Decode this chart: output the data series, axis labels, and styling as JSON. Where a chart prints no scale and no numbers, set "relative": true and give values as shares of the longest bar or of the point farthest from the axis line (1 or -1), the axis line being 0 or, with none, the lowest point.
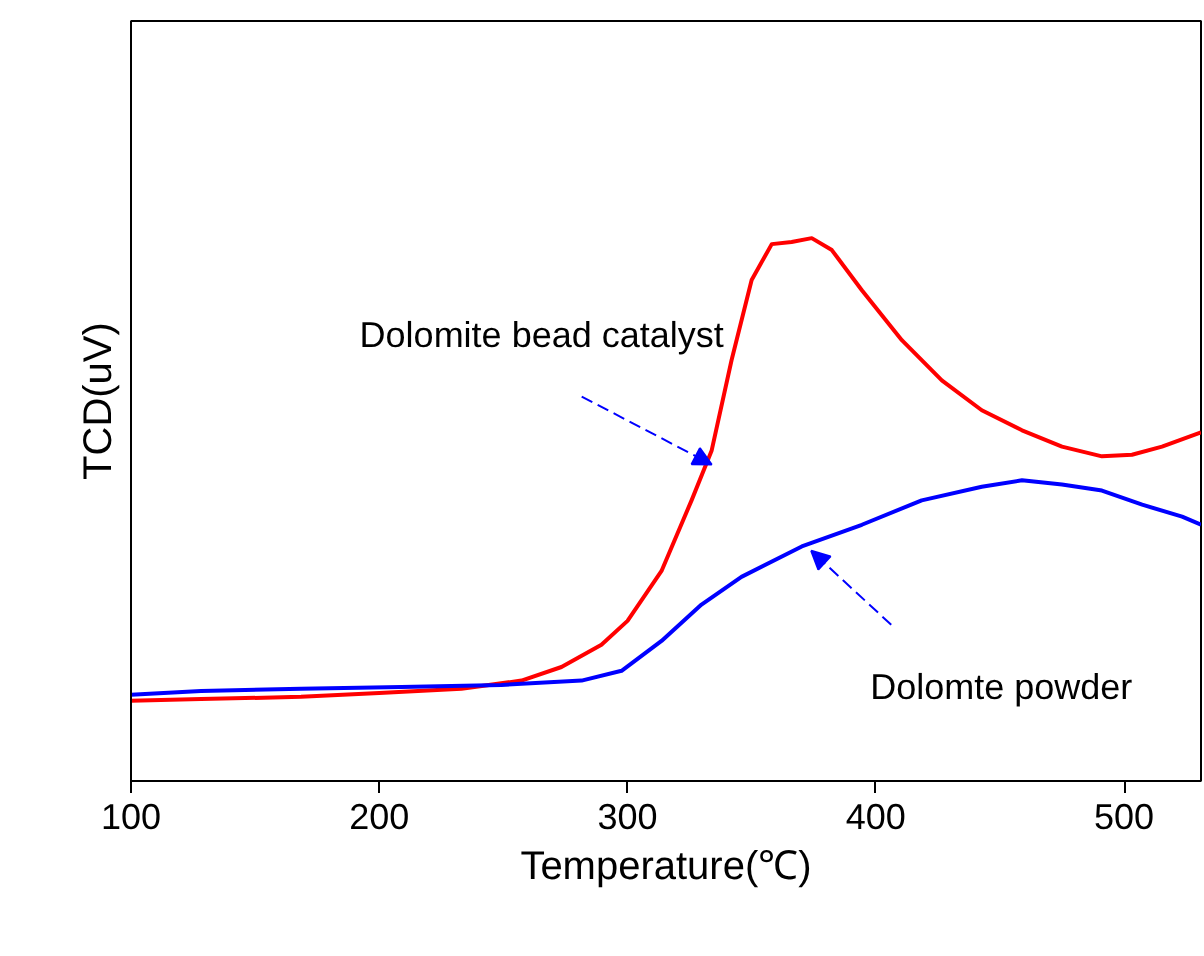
{
  "chart_data": {
    "type": "line",
    "relative": true,
    "xlabel": "Temperature(℃)",
    "ylabel": "TCD(uV)",
    "xlim": [
      100,
      531
    ],
    "xticks": [
      100,
      200,
      300,
      400,
      500
    ],
    "grid": false,
    "marker": "none",
    "line_style": "solid",
    "series": [
      {
        "color": "#ff0000",
        "x": [
          100,
          128.2,
          168.5,
          200,
          233.1,
          257.3,
          273.4,
          289.5,
          300,
          313.7,
          325.8,
          333.9,
          341.9,
          350,
          358.1,
          366.1,
          374.2,
          382.3,
          394.4,
          410.5,
          426.6,
          442.7,
          458.9,
          475,
          491.1,
          503.2,
          515.3,
          531
        ],
        "values": [
          0.148,
          0.151,
          0.155,
          0.162,
          0.17,
          0.185,
          0.21,
          0.251,
          0.295,
          0.387,
          0.517,
          0.609,
          0.775,
          0.923,
          0.989,
          0.993,
          1.0,
          0.978,
          0.904,
          0.812,
          0.738,
          0.683,
          0.646,
          0.616,
          0.598,
          0.601,
          0.616,
          0.642
        ]
      },
      {
        "color": "#0000ff",
        "x": [
          100,
          128.2,
          168.5,
          208.9,
          249.2,
          281.5,
          297.6,
          313.7,
          329.8,
          345.9,
          370.2,
          394.4,
          418.5,
          442.7,
          458.9,
          475,
          491.1,
          507.3,
          523.4,
          531
        ],
        "values": [
          0.159,
          0.166,
          0.17,
          0.173,
          0.177,
          0.185,
          0.203,
          0.258,
          0.325,
          0.376,
          0.432,
          0.472,
          0.517,
          0.542,
          0.554,
          0.546,
          0.535,
          0.509,
          0.487,
          0.472
        ]
      }
    ],
    "annotations": [
      {
        "text": "Dolomite bead catalyst",
        "x": 333.9,
        "y": 0.583
      },
      {
        "text": "Dolomte powder",
        "x": 374,
        "y": 0.424
      }
    ]
  }
}
